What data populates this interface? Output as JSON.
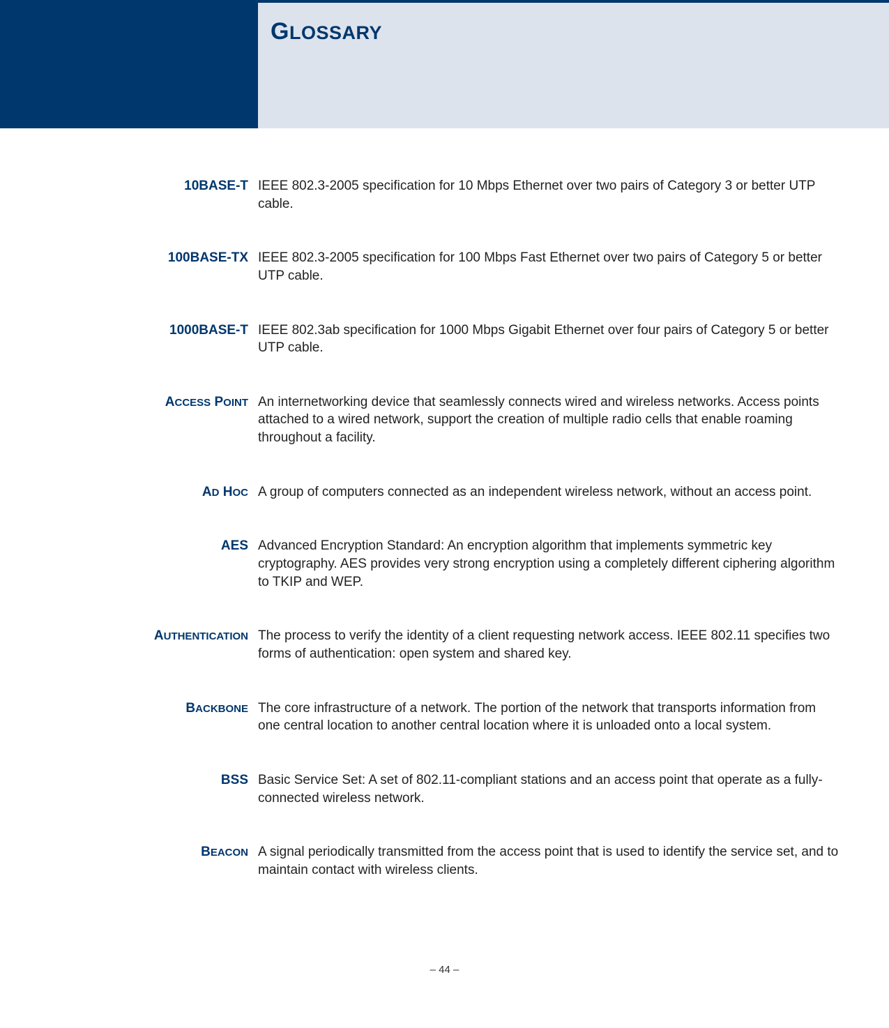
{
  "header": {
    "title_first": "G",
    "title_rest": "LOSSARY"
  },
  "entries": [
    {
      "term_plain": "10BASE-T",
      "def": "IEEE 802.3-2005 specification for 10 Mbps Ethernet over two pairs of Category 3 or better UTP cable."
    },
    {
      "term_plain": "100BASE-TX",
      "def": "IEEE 802.3-2005 specification for 100 Mbps Fast Ethernet over two pairs of Category 5 or better UTP cable."
    },
    {
      "term_plain": "1000BASE-T",
      "def": "IEEE 802.3ab specification for 1000 Mbps Gigabit Ethernet over four pairs of Category 5 or better UTP cable."
    },
    {
      "term_sc": [
        [
          "A",
          "CCESS"
        ],
        [
          "P",
          "OINT"
        ]
      ],
      "def": "An internetworking device that seamlessly connects wired and wireless networks. Access points attached to a wired network, support the creation of multiple radio cells that enable roaming throughout a facility."
    },
    {
      "term_sc": [
        [
          "A",
          "D"
        ],
        [
          "H",
          "OC"
        ]
      ],
      "def": "A group of computers connected as an independent wireless network, without an access point."
    },
    {
      "term_plain": "AES",
      "def": "Advanced Encryption Standard: An encryption algorithm that implements symmetric key cryptography. AES provides very strong encryption using a completely different ciphering algorithm to TKIP and WEP."
    },
    {
      "term_sc": [
        [
          "A",
          "UTHENTICATION"
        ]
      ],
      "def": "The process to verify the identity of a client requesting network access. IEEE 802.11 specifies two forms of authentication: open system and shared key."
    },
    {
      "term_sc": [
        [
          "B",
          "ACKBONE"
        ]
      ],
      "def": "The core infrastructure of a network. The portion of the network that transports information from one central location to another central location where it is unloaded onto a local system."
    },
    {
      "term_plain": "BSS",
      "def": "Basic Service Set: A set of 802.11-compliant stations and an access point that operate as a fully-connected wireless network."
    },
    {
      "term_sc": [
        [
          "B",
          "EACON"
        ]
      ],
      "def": "A signal periodically transmitted from the access point that is used to identify the service set, and to maintain contact with wireless clients."
    }
  ],
  "footer": "–  44  –",
  "colors": {
    "brand": "#00376d",
    "header_bg": "#dde3ec",
    "text": "#222222"
  }
}
